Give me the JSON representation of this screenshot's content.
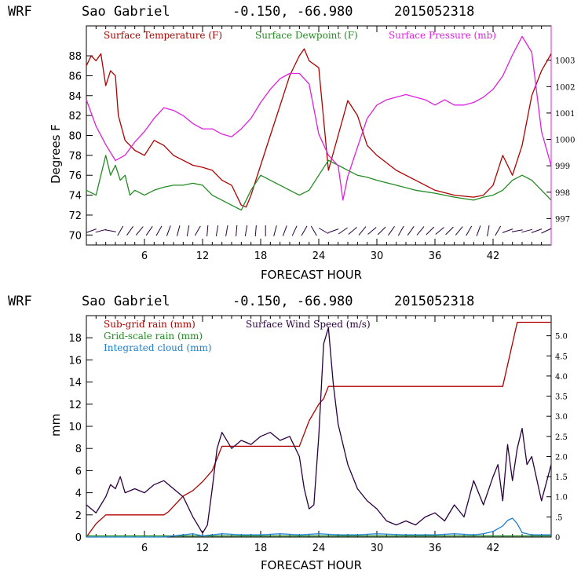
{
  "chart_data": [
    {
      "type": "line",
      "header": {
        "model": "WRF",
        "station": "Sao Gabriel",
        "coords": "-0.150, -66.980",
        "run": "2015052318"
      },
      "xlabel": "FORECAST HOUR",
      "ylabel": "Degrees F",
      "xlim": [
        0,
        48
      ],
      "ylim": [
        69,
        91
      ],
      "xticks": [
        "6",
        "12",
        "18",
        "24",
        "30",
        "36",
        "42"
      ],
      "yticks": [
        "70",
        "72",
        "74",
        "76",
        "78",
        "80",
        "82",
        "84",
        "86",
        "88"
      ],
      "y2lim": [
        996,
        1004.3
      ],
      "y2ticks": [
        "997",
        "998",
        "999",
        "1000",
        "1001",
        "1002",
        "1003"
      ],
      "legend": [
        "Surface Temperature (F)",
        "Surface Dewpoint (F)",
        "Surface Pressure (mb)"
      ],
      "colors": {
        "temperature": "#b00000",
        "dewpoint": "#228b22",
        "pressure": "#e020e0",
        "wind": "#2a0040"
      },
      "series": [
        {
          "name": "Surface Temperature (F)",
          "axis": "left",
          "x": [
            0,
            0.5,
            1,
            1.5,
            2,
            2.5,
            3,
            3.3,
            4,
            5,
            6,
            7,
            8,
            9,
            10,
            11,
            12,
            13,
            14,
            15,
            16,
            16.5,
            17,
            18,
            19,
            20,
            21,
            22,
            22.5,
            23,
            24,
            25,
            26,
            27,
            28,
            29,
            30,
            32,
            34,
            36,
            38,
            40,
            41,
            42,
            43,
            44,
            45,
            46,
            47,
            48
          ],
          "values": [
            87,
            88,
            87.5,
            88.2,
            85,
            86.5,
            86,
            82,
            79.5,
            78.5,
            78,
            79.5,
            79,
            78,
            77.5,
            77,
            76.8,
            76.5,
            75.5,
            75,
            73,
            72.8,
            74,
            77,
            80,
            83,
            86,
            88,
            88.7,
            87.5,
            86.8,
            76.5,
            80,
            83.5,
            82,
            79,
            78,
            76.5,
            75.5,
            74.5,
            74,
            73.8,
            74,
            75,
            78,
            76,
            79,
            84,
            86.5,
            88.2
          ]
        },
        {
          "name": "Surface Dewpoint (F)",
          "axis": "left",
          "x": [
            0,
            1,
            2,
            2.5,
            3,
            3.5,
            4,
            4.5,
            5,
            6,
            7,
            8,
            9,
            10,
            11,
            12,
            13,
            14,
            15,
            16,
            17,
            18,
            19,
            20,
            21,
            22,
            23,
            24,
            25,
            26,
            27,
            28,
            29,
            30,
            32,
            34,
            36,
            38,
            40,
            41,
            42,
            43,
            44,
            45,
            46,
            47,
            48
          ],
          "values": [
            74.5,
            74,
            78,
            76,
            77,
            75.5,
            76,
            74,
            74.5,
            74,
            74.5,
            74.8,
            75,
            75,
            75.2,
            75,
            74,
            73.5,
            73,
            72.5,
            74.5,
            76,
            75.5,
            75,
            74.5,
            74,
            74.5,
            76,
            77.5,
            77,
            76.5,
            76,
            75.8,
            75.5,
            75,
            74.5,
            74.2,
            73.8,
            73.5,
            73.8,
            74,
            74.5,
            75.5,
            76,
            75.5,
            74.5,
            73.5
          ]
        },
        {
          "name": "Surface Pressure (mb)",
          "axis": "right",
          "x": [
            0,
            1,
            2,
            3,
            4,
            5,
            6,
            7,
            8,
            9,
            10,
            11,
            12,
            13,
            14,
            15,
            16,
            17,
            18,
            19,
            20,
            21,
            22,
            23,
            24,
            25,
            26,
            26.5,
            27,
            28,
            29,
            30,
            31,
            32,
            33,
            34,
            35,
            36,
            37,
            38,
            39,
            40,
            41,
            42,
            43,
            44,
            45,
            46,
            47,
            48
          ],
          "values": [
            1001.5,
            1000.5,
            999.8,
            999.2,
            999.4,
            999.9,
            1000.3,
            1000.8,
            1001.2,
            1001.1,
            1000.9,
            1000.6,
            1000.4,
            1000.4,
            1000.2,
            1000.1,
            1000.4,
            1000.8,
            1001.4,
            1001.9,
            1002.3,
            1002.5,
            1002.5,
            1002.1,
            1000.2,
            999.4,
            999.0,
            997.7,
            998.6,
            999.7,
            1000.8,
            1001.3,
            1001.5,
            1001.6,
            1001.7,
            1001.6,
            1001.5,
            1001.3,
            1001.5,
            1001.3,
            1001.3,
            1001.4,
            1001.6,
            1001.9,
            1002.4,
            1003.2,
            1003.9,
            1003.3,
            1000.3,
            999.0
          ]
        }
      ]
    },
    {
      "type": "line",
      "header": {
        "model": "WRF",
        "station": "Sao Gabriel",
        "coords": "-0.150, -66.980",
        "run": "2015052318"
      },
      "xlabel": "FORECAST HOUR",
      "ylabel": "mm",
      "xlim": [
        0,
        48
      ],
      "ylim": [
        0,
        20
      ],
      "xticks": [
        "6",
        "12",
        "18",
        "24",
        "30",
        "36",
        "42"
      ],
      "yticks": [
        "0",
        "2",
        "4",
        "6",
        "8",
        "10",
        "12",
        "14",
        "16",
        "18"
      ],
      "y2lim": [
        0,
        5.5
      ],
      "y2ticks": [
        "0",
        ".5",
        "1.0",
        "1.5",
        "2.0",
        "2.5",
        "3.0",
        "3.5",
        "4.0",
        "4.5",
        "5.0"
      ],
      "legend": [
        "Sub-grid rain (mm)",
        "Grid-scale rain (mm)",
        "Integrated cloud (mm)",
        "Surface Wind Speed (m/s)"
      ],
      "colors": {
        "subgrid": "#b00000",
        "gridscale": "#228b22",
        "cloud": "#1e80d0",
        "wind": "#2a0040"
      },
      "series": [
        {
          "name": "Sub-grid rain (mm)",
          "axis": "left",
          "x": [
            0,
            1,
            2,
            8,
            8.5,
            10,
            11,
            12,
            13,
            14,
            22,
            23,
            24,
            24.5,
            25,
            43,
            44.5,
            48
          ],
          "values": [
            0,
            1.2,
            2,
            2,
            2.3,
            3.7,
            4.2,
            5,
            6,
            8.2,
            8.2,
            10.5,
            12,
            12.5,
            13.6,
            13.6,
            19.4,
            19.4
          ]
        },
        {
          "name": "Grid-scale rain (mm)",
          "axis": "left",
          "x": [
            0,
            48
          ],
          "values": [
            0.1,
            0.1
          ]
        },
        {
          "name": "Integrated cloud (mm)",
          "axis": "left",
          "x": [
            0,
            8,
            9,
            10,
            11,
            12,
            13,
            14,
            16,
            18,
            20,
            22,
            24,
            26,
            28,
            30,
            33,
            36,
            38,
            40,
            41,
            42,
            43,
            43.5,
            44,
            44.5,
            45,
            46,
            48
          ],
          "values": [
            0,
            0,
            0.1,
            0.2,
            0.3,
            0.1,
            0.2,
            0.3,
            0.2,
            0.2,
            0.3,
            0.2,
            0.3,
            0.2,
            0.2,
            0.3,
            0.2,
            0.2,
            0.3,
            0.2,
            0.3,
            0.5,
            1.0,
            1.5,
            1.7,
            1.2,
            0.4,
            0.2,
            0.2
          ]
        },
        {
          "name": "Surface Wind Speed (m/s)",
          "axis": "right",
          "x": [
            0,
            0.5,
            1,
            1.5,
            2,
            2.5,
            3,
            3.5,
            4,
            5,
            6,
            7,
            8,
            9,
            10,
            11,
            12,
            12.5,
            13,
            13.5,
            14,
            15,
            16,
            17,
            18,
            19,
            20,
            21,
            22,
            22.5,
            23,
            23.5,
            24,
            24.5,
            25,
            25.5,
            26,
            27,
            28,
            29,
            30,
            31,
            32,
            33,
            34,
            35,
            36,
            37,
            38,
            39,
            40,
            41,
            42,
            42.5,
            43,
            43.5,
            44,
            44.5,
            45,
            45.5,
            46,
            47,
            48
          ],
          "values": [
            0.8,
            0.7,
            0.6,
            0.8,
            1.0,
            1.3,
            1.2,
            1.5,
            1.1,
            1.2,
            1.1,
            1.3,
            1.4,
            1.2,
            1.0,
            0.5,
            0.1,
            0.3,
            1.2,
            2.2,
            2.6,
            2.2,
            2.4,
            2.3,
            2.5,
            2.6,
            2.4,
            2.5,
            2.0,
            1.2,
            0.7,
            0.8,
            2.5,
            4.8,
            5.2,
            3.8,
            2.8,
            1.8,
            1.2,
            0.9,
            0.7,
            0.4,
            0.3,
            0.4,
            0.3,
            0.5,
            0.6,
            0.4,
            0.8,
            0.5,
            1.4,
            0.8,
            1.5,
            1.8,
            0.9,
            2.3,
            1.4,
            2.2,
            2.7,
            1.8,
            2.0,
            0.9,
            1.8
          ]
        }
      ]
    }
  ]
}
